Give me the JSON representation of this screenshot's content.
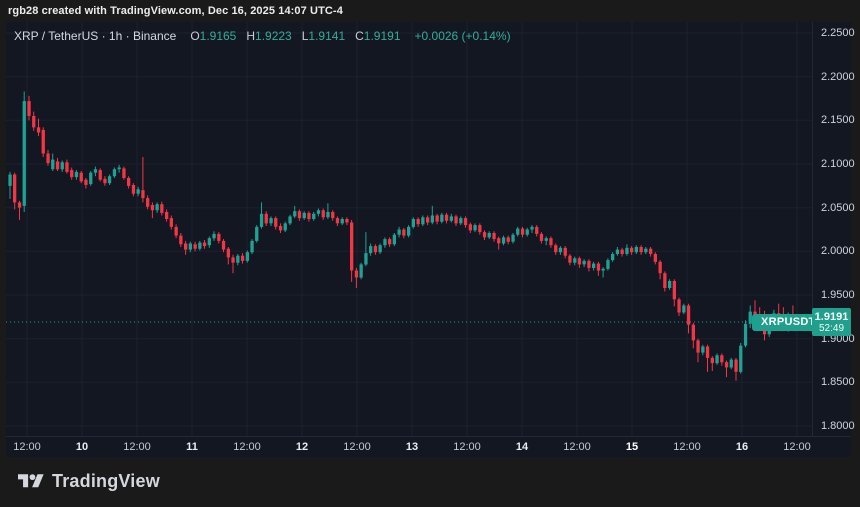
{
  "topbar": {
    "attribution": "rgb28 created with TradingView.com, Dec 16, 2025 14:07 UTC-4"
  },
  "header": {
    "symbol_title": "XRP / TetherUS · 1h · Binance",
    "ohlc": [
      {
        "label": "O",
        "value": "1.9165"
      },
      {
        "label": "H",
        "value": "1.9223"
      },
      {
        "label": "L",
        "value": "1.9141"
      },
      {
        "label": "C",
        "value": "1.9191"
      }
    ],
    "change": "+0.0026 (+0.14%)"
  },
  "price_line": {
    "symbol_badge": "XRPUSDT",
    "label": "1.9191",
    "countdown": "52:49",
    "value": 1.9191
  },
  "logo": {
    "text": "TradingView"
  },
  "icons": {
    "realtime": "lightning-icon",
    "lightning_glyph": "⚡"
  },
  "colors": {
    "outer": "#1a1a1a",
    "pane": "#131722",
    "grid": "#1c2130",
    "axisline": "#232838",
    "up": "#1fa294",
    "down": "#f23645",
    "badge": "#1fa08c",
    "tealtext": "#2fae9a",
    "magenta": "#d840ce"
  },
  "chart_data": {
    "type": "candlestick",
    "title": "XRP / TetherUS · 1h · Binance",
    "symbol": "XRPUSDT",
    "exchange": "Binance",
    "interval": "1h",
    "last_candle": {
      "open": 1.9165,
      "high": 1.9223,
      "low": 1.9141,
      "close": 1.9191,
      "change": "+0.0026",
      "change_pct": "+0.14%"
    },
    "current_price": 1.9191,
    "countdown": "52:49",
    "ylim": [
      1.8,
      2.25
    ],
    "y_ticks": [
      2.25,
      2.2,
      2.15,
      2.1,
      2.05,
      2.0,
      1.95,
      1.9,
      1.85,
      1.8
    ],
    "y_tick_labels": [
      "2.2500",
      "2.2000",
      "2.1500",
      "2.1000",
      "2.0500",
      "2.0000",
      "1.9500",
      "1.9000",
      "1.8500",
      "1.8000"
    ],
    "x_ticks": [
      {
        "text": "12:00",
        "day": false,
        "strong": false
      },
      {
        "text": "10",
        "day": true,
        "strong": false
      },
      {
        "text": "12:00",
        "day": false,
        "strong": false
      },
      {
        "text": "11",
        "day": true,
        "strong": false
      },
      {
        "text": "12:00",
        "day": false,
        "strong": false
      },
      {
        "text": "12",
        "day": true,
        "strong": false
      },
      {
        "text": "12:00",
        "day": false,
        "strong": false
      },
      {
        "text": "13",
        "day": true,
        "strong": false
      },
      {
        "text": "12:00",
        "day": false,
        "strong": false
      },
      {
        "text": "14",
        "day": true,
        "strong": false
      },
      {
        "text": "12:00",
        "day": false,
        "strong": false
      },
      {
        "text": "15",
        "day": true,
        "strong": true
      },
      {
        "text": "12:00",
        "day": false,
        "strong": false
      },
      {
        "text": "16",
        "day": true,
        "strong": false
      },
      {
        "text": "12:00",
        "day": false,
        "strong": false
      }
    ],
    "legend_position": "top-left",
    "grid": true,
    "candles": [
      [
        2.075,
        2.091,
        2.06,
        2.088
      ],
      [
        2.088,
        2.09,
        2.048,
        2.056
      ],
      [
        2.056,
        2.058,
        2.036,
        2.05
      ],
      [
        2.052,
        2.183,
        2.045,
        2.172
      ],
      [
        2.172,
        2.178,
        2.15,
        2.155
      ],
      [
        2.155,
        2.16,
        2.138,
        2.142
      ],
      [
        2.142,
        2.152,
        2.132,
        2.136
      ],
      [
        2.139,
        2.142,
        2.108,
        2.112
      ],
      [
        2.112,
        2.116,
        2.098,
        2.101
      ],
      [
        2.094,
        2.112,
        2.092,
        2.105
      ],
      [
        2.103,
        2.107,
        2.092,
        2.094
      ],
      [
        2.094,
        2.104,
        2.091,
        2.102
      ],
      [
        2.102,
        2.105,
        2.089,
        2.091
      ],
      [
        2.093,
        2.096,
        2.082,
        2.085
      ],
      [
        2.085,
        2.093,
        2.082,
        2.091
      ],
      [
        2.09,
        2.092,
        2.078,
        2.08
      ],
      [
        2.082,
        2.084,
        2.072,
        2.076
      ],
      [
        2.077,
        2.092,
        2.075,
        2.09
      ],
      [
        2.09,
        2.097,
        2.086,
        2.094
      ],
      [
        2.093,
        2.095,
        2.08,
        2.082
      ],
      [
        2.083,
        2.086,
        2.075,
        2.078
      ],
      [
        2.078,
        2.088,
        2.076,
        2.086
      ],
      [
        2.086,
        2.096,
        2.084,
        2.094
      ],
      [
        2.094,
        2.099,
        2.09,
        2.096
      ],
      [
        2.095,
        2.097,
        2.082,
        2.084
      ],
      [
        2.084,
        2.086,
        2.072,
        2.075
      ],
      [
        2.076,
        2.078,
        2.063,
        2.066
      ],
      [
        2.066,
        2.074,
        2.063,
        2.071
      ],
      [
        2.07,
        2.108,
        2.056,
        2.061
      ],
      [
        2.061,
        2.064,
        2.048,
        2.051
      ],
      [
        2.053,
        2.056,
        2.038,
        2.047
      ],
      [
        2.047,
        2.056,
        2.044,
        2.054
      ],
      [
        2.054,
        2.057,
        2.041,
        2.044
      ],
      [
        2.045,
        2.048,
        2.034,
        2.037
      ],
      [
        2.038,
        2.041,
        2.025,
        2.028
      ],
      [
        2.028,
        2.031,
        2.015,
        2.018
      ],
      [
        2.018,
        2.021,
        2.005,
        2.008
      ],
      [
        2.009,
        2.012,
        1.996,
        2.002
      ],
      [
        2.002,
        2.011,
        1.999,
        2.009
      ],
      [
        2.008,
        2.011,
        2.0,
        2.003
      ],
      [
        2.003,
        2.012,
        2.001,
        2.01
      ],
      [
        2.01,
        2.013,
        2.003,
        2.006
      ],
      [
        2.007,
        2.017,
        2.004,
        2.015
      ],
      [
        2.015,
        2.023,
        2.012,
        2.02
      ],
      [
        2.02,
        2.022,
        2.009,
        2.012
      ],
      [
        2.012,
        2.014,
        1.999,
        2.002
      ],
      [
        2.003,
        2.005,
        1.985,
        1.993
      ],
      [
        1.993,
        1.996,
        1.975,
        1.987
      ],
      [
        1.987,
        1.997,
        1.984,
        1.995
      ],
      [
        1.995,
        1.998,
        1.986,
        1.989
      ],
      [
        1.989,
        2.001,
        1.987,
        1.999
      ],
      [
        1.999,
        2.014,
        1.997,
        2.012
      ],
      [
        2.012,
        2.03,
        2.01,
        2.028
      ],
      [
        2.028,
        2.056,
        2.026,
        2.043
      ],
      [
        2.043,
        2.046,
        2.029,
        2.032
      ],
      [
        2.032,
        2.04,
        2.029,
        2.038
      ],
      [
        2.038,
        2.04,
        2.025,
        2.028
      ],
      [
        2.029,
        2.032,
        2.021,
        2.024
      ],
      [
        2.024,
        2.034,
        2.022,
        2.032
      ],
      [
        2.032,
        2.042,
        2.03,
        2.04
      ],
      [
        2.04,
        2.052,
        2.038,
        2.046
      ],
      [
        2.046,
        2.048,
        2.035,
        2.038
      ],
      [
        2.038,
        2.046,
        2.036,
        2.044
      ],
      [
        2.044,
        2.046,
        2.034,
        2.037
      ],
      [
        2.037,
        2.045,
        2.035,
        2.043
      ],
      [
        2.043,
        2.049,
        2.04,
        2.047
      ],
      [
        2.047,
        2.049,
        2.036,
        2.039
      ],
      [
        2.039,
        2.055,
        2.037,
        2.045
      ],
      [
        2.045,
        2.047,
        2.035,
        2.038
      ],
      [
        2.038,
        2.04,
        2.029,
        2.032
      ],
      [
        2.032,
        2.039,
        2.03,
        2.037
      ],
      [
        2.037,
        2.039,
        2.03,
        2.033
      ],
      [
        2.033,
        2.036,
        1.965,
        1.978
      ],
      [
        1.978,
        1.981,
        1.958,
        1.97
      ],
      [
        1.97,
        1.987,
        1.968,
        1.985
      ],
      [
        1.985,
        2.022,
        1.983,
        1.998
      ],
      [
        1.998,
        2.009,
        1.995,
        2.006
      ],
      [
        2.006,
        2.008,
        1.996,
        1.999
      ],
      [
        1.999,
        2.009,
        1.997,
        2.007
      ],
      [
        2.007,
        2.016,
        2.004,
        2.014
      ],
      [
        2.014,
        2.016,
        2.005,
        2.008
      ],
      [
        2.008,
        2.021,
        2.006,
        2.019
      ],
      [
        2.019,
        2.028,
        2.016,
        2.025
      ],
      [
        2.025,
        2.027,
        2.015,
        2.018
      ],
      [
        2.018,
        2.03,
        2.016,
        2.028
      ],
      [
        2.028,
        2.039,
        2.026,
        2.037
      ],
      [
        2.037,
        2.039,
        2.028,
        2.031
      ],
      [
        2.031,
        2.041,
        2.029,
        2.039
      ],
      [
        2.039,
        2.041,
        2.03,
        2.033
      ],
      [
        2.033,
        2.052,
        2.031,
        2.041
      ],
      [
        2.041,
        2.043,
        2.031,
        2.034
      ],
      [
        2.034,
        2.044,
        2.032,
        2.042
      ],
      [
        2.042,
        2.044,
        2.032,
        2.035
      ],
      [
        2.035,
        2.043,
        2.033,
        2.04
      ],
      [
        2.04,
        2.042,
        2.029,
        2.032
      ],
      [
        2.032,
        2.04,
        2.03,
        2.038
      ],
      [
        2.038,
        2.04,
        2.027,
        2.03
      ],
      [
        2.031,
        2.033,
        2.021,
        2.024
      ],
      [
        2.024,
        2.032,
        2.022,
        2.03
      ],
      [
        2.03,
        2.032,
        2.019,
        2.022
      ],
      [
        2.022,
        2.024,
        2.013,
        2.016
      ],
      [
        2.016,
        2.023,
        2.014,
        2.021
      ],
      [
        2.021,
        2.023,
        2.011,
        2.014
      ],
      [
        2.015,
        2.017,
        2.002,
        2.009
      ],
      [
        2.009,
        2.018,
        2.007,
        2.016
      ],
      [
        2.016,
        2.018,
        2.008,
        2.011
      ],
      [
        2.011,
        2.021,
        2.009,
        2.019
      ],
      [
        2.019,
        2.028,
        2.017,
        2.026
      ],
      [
        2.026,
        2.028,
        2.016,
        2.019
      ],
      [
        2.019,
        2.027,
        2.017,
        2.025
      ],
      [
        2.025,
        2.03,
        2.021,
        2.028
      ],
      [
        2.028,
        2.03,
        2.017,
        2.02
      ],
      [
        2.02,
        2.022,
        2.009,
        2.012
      ],
      [
        2.012,
        2.017,
        2.007,
        2.015
      ],
      [
        2.015,
        2.017,
        2.004,
        2.007
      ],
      [
        2.007,
        2.009,
        1.996,
        1.999
      ],
      [
        1.999,
        2.006,
        1.996,
        2.004
      ],
      [
        2.004,
        2.006,
        1.992,
        1.995
      ],
      [
        1.995,
        1.997,
        1.984,
        1.987
      ],
      [
        1.987,
        1.994,
        1.984,
        1.992
      ],
      [
        1.992,
        1.994,
        1.981,
        1.985
      ],
      [
        1.985,
        1.991,
        1.982,
        1.989
      ],
      [
        1.989,
        1.991,
        1.977,
        1.981
      ],
      [
        1.981,
        1.988,
        1.978,
        1.986
      ],
      [
        1.986,
        1.988,
        1.972,
        1.978
      ],
      [
        1.978,
        1.982,
        1.97,
        1.98
      ],
      [
        1.98,
        1.992,
        1.978,
        1.99
      ],
      [
        1.99,
        1.999,
        1.988,
        1.997
      ],
      [
        1.997,
        2.005,
        1.995,
        2.002
      ],
      [
        2.002,
        2.004,
        1.994,
        1.997
      ],
      [
        1.997,
        2.008,
        1.995,
        2.004
      ],
      [
        2.004,
        2.006,
        1.996,
        1.999
      ],
      [
        1.999,
        2.007,
        1.997,
        2.005
      ],
      [
        2.005,
        2.007,
        1.996,
        1.999
      ],
      [
        1.999,
        2.005,
        1.997,
        2.003
      ],
      [
        2.003,
        2.005,
        1.994,
        1.997
      ],
      [
        1.997,
        1.999,
        1.985,
        1.988
      ],
      [
        1.988,
        1.99,
        1.968,
        1.975
      ],
      [
        1.975,
        1.977,
        1.954,
        1.958
      ],
      [
        1.958,
        1.968,
        1.956,
        1.966
      ],
      [
        1.966,
        1.968,
        1.937,
        1.945
      ],
      [
        1.945,
        1.947,
        1.926,
        1.93
      ],
      [
        1.93,
        1.94,
        1.928,
        1.938
      ],
      [
        1.938,
        1.94,
        1.906,
        1.916
      ],
      [
        1.916,
        1.918,
        1.889,
        1.898
      ],
      [
        1.898,
        1.9,
        1.873,
        1.884
      ],
      [
        1.884,
        1.893,
        1.881,
        1.891
      ],
      [
        1.891,
        1.893,
        1.862,
        1.878
      ],
      [
        1.878,
        1.88,
        1.863,
        1.872
      ],
      [
        1.872,
        1.883,
        1.87,
        1.881
      ],
      [
        1.881,
        1.883,
        1.869,
        1.873
      ],
      [
        1.873,
        1.875,
        1.856,
        1.867
      ],
      [
        1.867,
        1.878,
        1.865,
        1.876
      ],
      [
        1.876,
        1.878,
        1.852,
        1.862
      ],
      [
        1.862,
        1.895,
        1.86,
        1.892
      ],
      [
        1.892,
        1.921,
        1.89,
        1.917
      ],
      [
        1.917,
        1.938,
        1.912,
        1.931
      ],
      [
        1.931,
        1.944,
        1.922,
        1.926
      ],
      [
        1.926,
        1.936,
        1.916,
        1.92
      ],
      [
        1.92,
        1.932,
        1.898,
        1.905
      ],
      [
        1.905,
        1.922,
        1.902,
        1.918
      ],
      [
        1.918,
        1.933,
        1.914,
        1.929
      ],
      [
        1.929,
        1.94,
        1.921,
        1.925
      ],
      [
        1.925,
        1.936,
        1.917,
        1.921
      ],
      [
        1.921,
        1.93,
        1.908,
        1.927
      ],
      [
        1.927,
        1.938,
        1.918,
        1.922
      ],
      [
        1.922,
        1.926,
        1.911,
        1.9165
      ],
      [
        1.9165,
        1.9223,
        1.9141,
        1.9191
      ]
    ]
  }
}
